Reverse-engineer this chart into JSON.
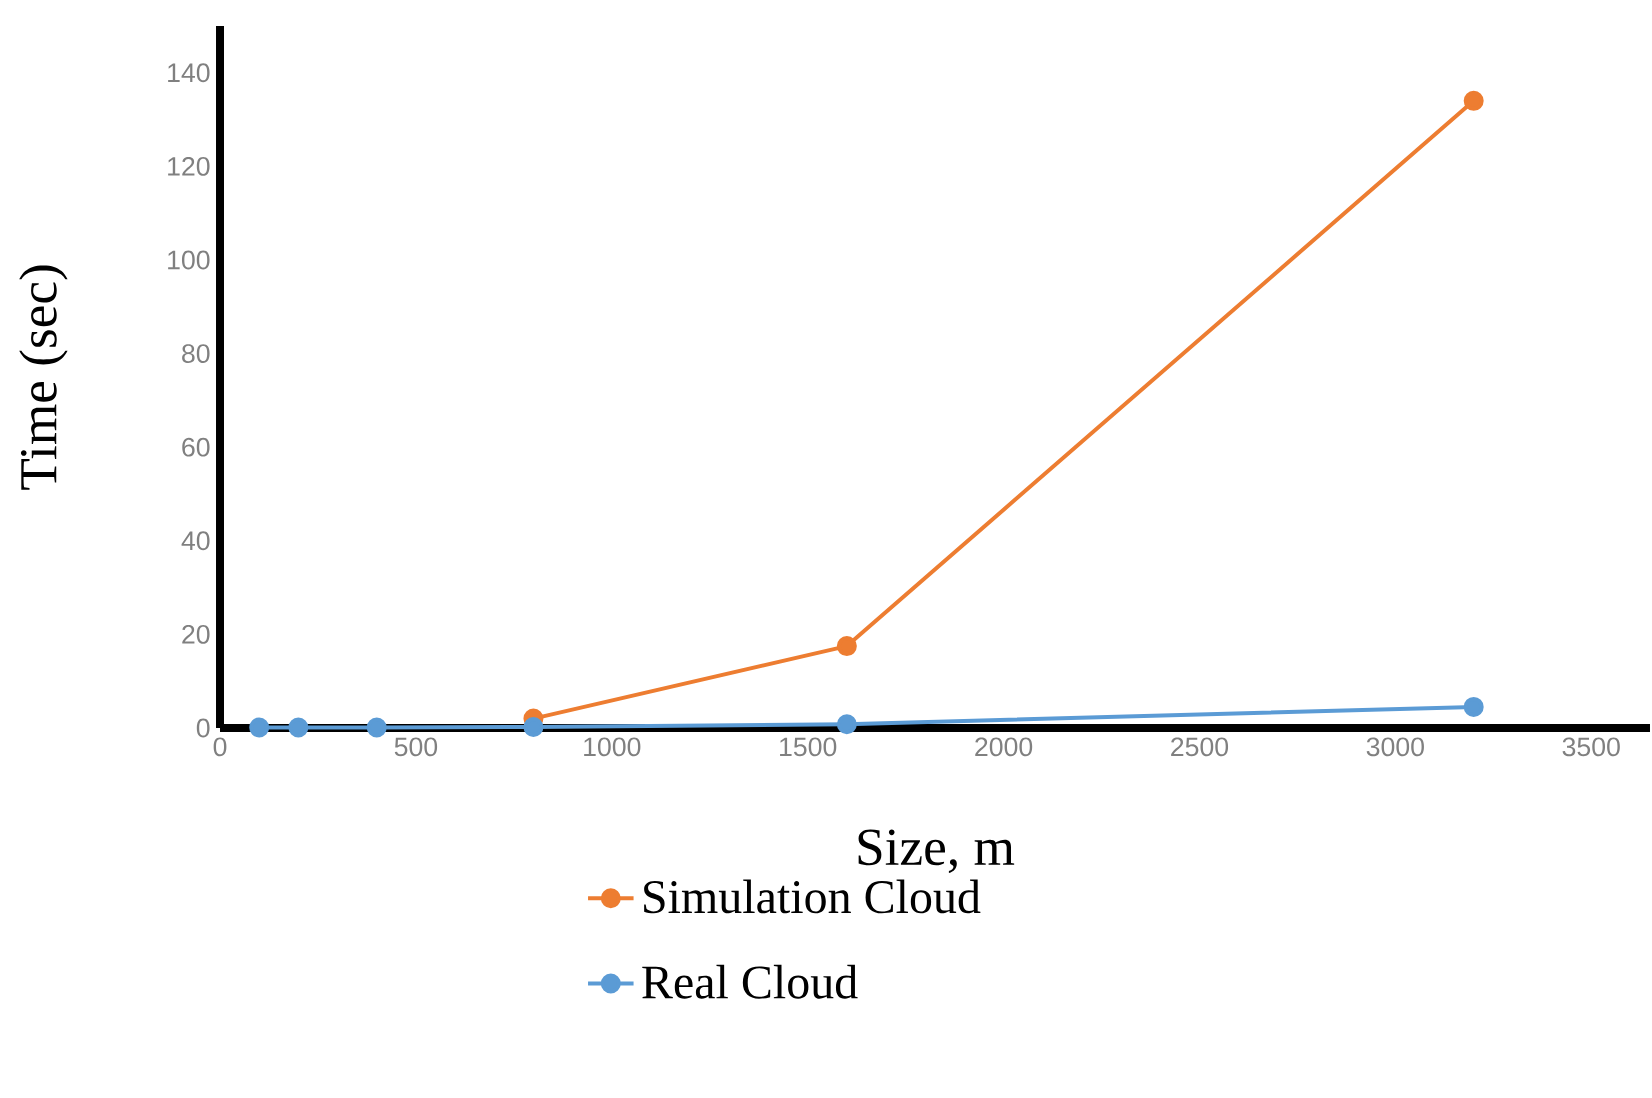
{
  "chart_data": {
    "type": "line",
    "xlabel": "Size, m",
    "ylabel": "Time (sec)",
    "xlim": [
      0,
      3650
    ],
    "xticks": [
      0,
      500,
      1000,
      1500,
      2000,
      2500,
      3000,
      3500
    ],
    "ylim": [
      0,
      150
    ],
    "yticks": [
      0,
      20,
      40,
      60,
      80,
      100,
      120,
      140
    ],
    "x": [
      100,
      200,
      400,
      800,
      1600,
      3200
    ],
    "series": [
      {
        "name": "Simulation Cloud",
        "color": "#ed7d31",
        "values": [
          null,
          null,
          null,
          2,
          17.5,
          134
        ]
      },
      {
        "name": "Real Cloud",
        "color": "#5b9bd5",
        "values": [
          0.1,
          0.1,
          0.1,
          0.2,
          0.8,
          4.5
        ]
      }
    ],
    "marker": "circle",
    "legend": "bottom",
    "grid": false
  }
}
